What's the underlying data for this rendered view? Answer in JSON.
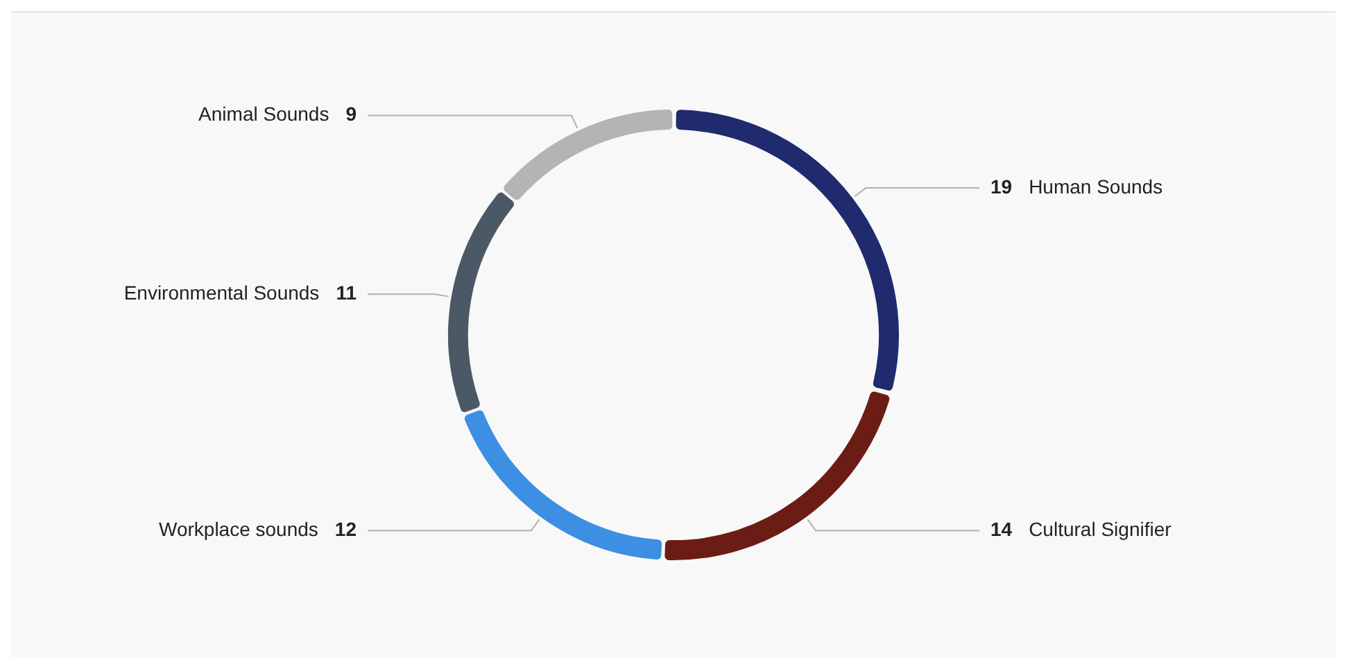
{
  "chart_data": {
    "type": "donut",
    "categories": [
      "Human Sounds",
      "Cultural Signifier",
      "Workplace sounds",
      "Environmental Sounds",
      "Animal Sounds"
    ],
    "values": [
      19,
      14,
      12,
      11,
      9
    ],
    "colors": [
      "#1f2b6e",
      "#6b1d15",
      "#3d8fe3",
      "#4b5966",
      "#b4b4b4"
    ],
    "data_labels": true,
    "legend": false
  }
}
